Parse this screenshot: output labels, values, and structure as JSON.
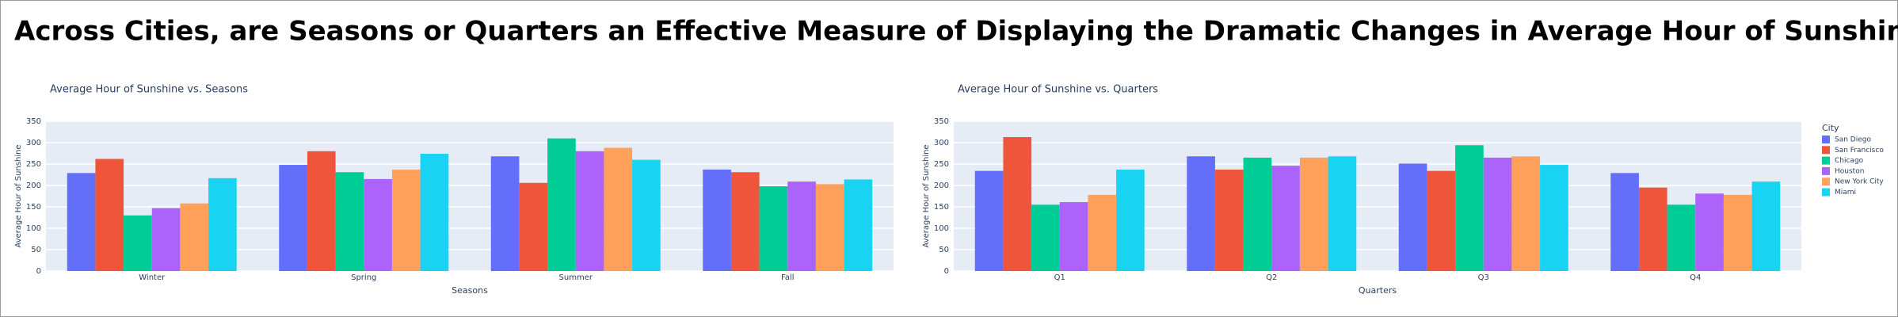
{
  "title": "Across Cities, are Seasons or Quarters an Effective Measure of Displaying the Dramatic Changes in Average Hour of Sunshine?",
  "chart_data": [
    {
      "type": "bar",
      "title": "Average Hour of Sunshine vs. Seasons",
      "x_label": "Seasons",
      "y_label": "Average Hour of Sunshine",
      "categories": [
        "Winter",
        "Spring",
        "Summer",
        "Fall"
      ],
      "ylim": [
        0,
        350
      ],
      "yticks": [
        0,
        50,
        100,
        150,
        200,
        250,
        300,
        350
      ],
      "grid": true,
      "series": [
        {
          "color": "#636efa",
          "values": [
            229,
            248,
            268,
            237
          ]
        },
        {
          "color": "#ef553b",
          "values": [
            262,
            280,
            206,
            231
          ]
        },
        {
          "color": "#00cc96",
          "values": [
            130,
            231,
            310,
            198
          ]
        },
        {
          "color": "#ab63fa",
          "values": [
            147,
            215,
            280,
            209
          ]
        },
        {
          "color": "#ffa15a",
          "values": [
            158,
            237,
            288,
            203
          ]
        },
        {
          "color": "#19d3f3",
          "values": [
            217,
            274,
            260,
            214
          ]
        }
      ]
    },
    {
      "type": "bar",
      "title": "Average Hour of Sunshine vs. Quarters",
      "x_label": "Quarters",
      "y_label": "Average Hour of Sunshine",
      "categories": [
        "Q1",
        "Q2",
        "Q3",
        "Q4"
      ],
      "ylim": [
        0,
        350
      ],
      "yticks": [
        0,
        50,
        100,
        150,
        200,
        250,
        300,
        350
      ],
      "grid": true,
      "legend": "right",
      "legend_title": "City",
      "series": [
        {
          "name": "San Diego",
          "color": "#636efa",
          "values": [
            234,
            268,
            251,
            229
          ]
        },
        {
          "name": "San Francisco",
          "color": "#ef553b",
          "values": [
            313,
            237,
            234,
            195
          ]
        },
        {
          "name": "Chicago",
          "color": "#00cc96",
          "values": [
            155,
            265,
            294,
            155
          ]
        },
        {
          "name": "Houston",
          "color": "#ab63fa",
          "values": [
            161,
            246,
            265,
            181
          ]
        },
        {
          "name": "New York City",
          "color": "#ffa15a",
          "values": [
            178,
            265,
            268,
            178
          ]
        },
        {
          "name": "Miami",
          "color": "#19d3f3",
          "values": [
            237,
            268,
            248,
            209
          ]
        }
      ]
    }
  ]
}
